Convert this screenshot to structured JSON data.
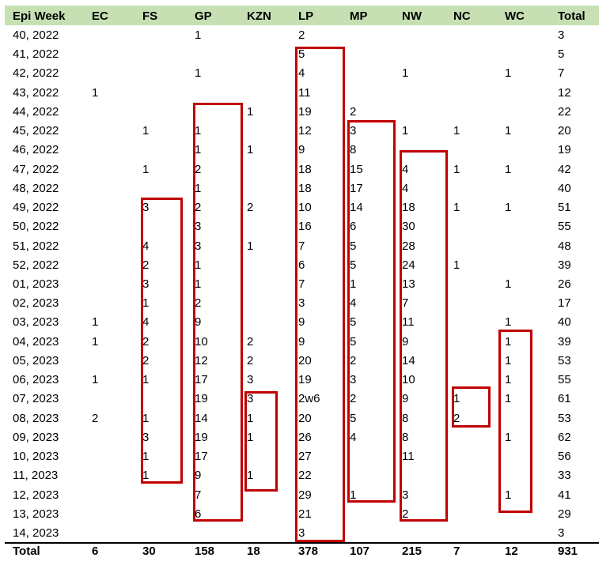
{
  "header": [
    "Epi Week",
    "EC",
    "FS",
    "GP",
    "KZN",
    "LP",
    "MP",
    "NW",
    "NC",
    "WC",
    "Total"
  ],
  "rows": [
    [
      "40, 2022",
      "",
      "",
      "1",
      "",
      "2",
      "",
      "",
      "",
      "",
      "3"
    ],
    [
      "41, 2022",
      "",
      "",
      "",
      "",
      "5",
      "",
      "",
      "",
      "",
      "5"
    ],
    [
      "42, 2022",
      "",
      "",
      "1",
      "",
      "4",
      "",
      "1",
      "",
      "1",
      "7"
    ],
    [
      "43, 2022",
      "1",
      "",
      "",
      "",
      "11",
      "",
      "",
      "",
      "",
      "12"
    ],
    [
      "44, 2022",
      "",
      "",
      "",
      "1",
      "19",
      "2",
      "",
      "",
      "",
      "22"
    ],
    [
      "45, 2022",
      "",
      "1",
      "1",
      "",
      "12",
      "3",
      "1",
      "1",
      "1",
      "20"
    ],
    [
      "46, 2022",
      "",
      "",
      "1",
      "1",
      "9",
      "8",
      "",
      "",
      "",
      "19"
    ],
    [
      "47, 2022",
      "",
      "1",
      "2",
      "",
      "18",
      "15",
      "4",
      "1",
      "1",
      "42"
    ],
    [
      "48, 2022",
      "",
      "",
      "1",
      "",
      "18",
      "17",
      "4",
      "",
      "",
      "40"
    ],
    [
      "49, 2022",
      "",
      "3",
      "2",
      "2",
      "10",
      "14",
      "18",
      "1",
      "1",
      "51"
    ],
    [
      "50, 2022",
      "",
      "",
      "3",
      "",
      "16",
      "6",
      "30",
      "",
      "",
      "55"
    ],
    [
      "51, 2022",
      "",
      "4",
      "3",
      "1",
      "7",
      "5",
      "28",
      "",
      "",
      "48"
    ],
    [
      "52, 2022",
      "",
      "2",
      "1",
      "",
      "6",
      "5",
      "24",
      "1",
      "",
      "39"
    ],
    [
      "01, 2023",
      "",
      "3",
      "1",
      "",
      "7",
      "1",
      "13",
      "",
      "1",
      "26"
    ],
    [
      "02, 2023",
      "",
      "1",
      "2",
      "",
      "3",
      "4",
      "7",
      "",
      "",
      "17"
    ],
    [
      "03, 2023",
      "1",
      "4",
      "9",
      "",
      "9",
      "5",
      "11",
      "",
      "1",
      "40"
    ],
    [
      "04, 2023",
      "1",
      "2",
      "10",
      "2",
      "9",
      "5",
      "9",
      "",
      "1",
      "39"
    ],
    [
      "05, 2023",
      "",
      "2",
      "12",
      "2",
      "20",
      "2",
      "14",
      "",
      "1",
      "53"
    ],
    [
      "06, 2023",
      "1",
      "1",
      "17",
      "3",
      "19",
      "3",
      "10",
      "",
      "1",
      "55"
    ],
    [
      "07, 2023",
      "",
      "",
      "19",
      "3",
      "2w6",
      "2",
      "9",
      "1",
      "1",
      "61"
    ],
    [
      "08, 2023",
      "2",
      "1",
      "14",
      "1",
      "20",
      "5",
      "8",
      "2",
      "",
      "53"
    ],
    [
      "09, 2023",
      "",
      "3",
      "19",
      "1",
      "26",
      "4",
      "8",
      "",
      "1",
      "62"
    ],
    [
      "10, 2023",
      "",
      "1",
      "17",
      "",
      "27",
      "",
      "11",
      "",
      "",
      "56"
    ],
    [
      "11, 2023",
      "",
      "1",
      "9",
      "1",
      "22",
      "",
      "",
      "",
      "",
      "33"
    ],
    [
      "12, 2023",
      "",
      "",
      "7",
      "",
      "29",
      "1",
      "3",
      "",
      "1",
      "41"
    ],
    [
      "13, 2023",
      "",
      "",
      "6",
      "",
      "21",
      "",
      "2",
      "",
      "",
      "29"
    ],
    [
      "14, 2023",
      "",
      "",
      "",
      "",
      "3",
      "",
      "",
      "",
      "",
      "3"
    ]
  ],
  "totals": [
    "Total",
    "6",
    "30",
    "158",
    "18",
    "378",
    "107",
    "215",
    "7",
    "12",
    "931"
  ],
  "highlight_color": "#c00000",
  "header_color": "#c6e0b4"
}
